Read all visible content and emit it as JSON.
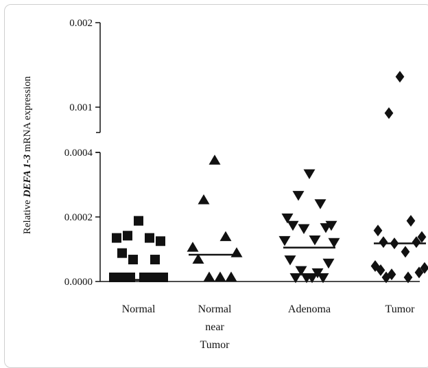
{
  "chart_data": {
    "type": "scatter",
    "ylabel_prefix": "Relative ",
    "ylabel_gene": "DEFA 1-3",
    "ylabel_suffix": " mRNA expression",
    "categories": [
      {
        "lines": [
          "Normal"
        ]
      },
      {
        "lines": [
          "Normal",
          "near",
          "Tumor"
        ]
      },
      {
        "lines": [
          "Adenoma"
        ]
      },
      {
        "lines": [
          "Tumor"
        ]
      }
    ],
    "y_axis": {
      "lower_segment": {
        "range": [
          0,
          0.0004
        ],
        "ticks": [
          "0.0000",
          "0.0002",
          "0.0004"
        ]
      },
      "upper_segment": {
        "range": [
          0.0007,
          0.002
        ],
        "ticks": [
          "0.001",
          "0.002"
        ]
      },
      "break_between": [
        0.0004,
        0.0007
      ]
    },
    "series": [
      {
        "marker": "square",
        "median": 5e-06,
        "values": [
          0.000188,
          0.000142,
          0.000135,
          0.000135,
          0.000125,
          8.8e-05,
          6.8e-05,
          6.8e-05,
          1.2e-05,
          1.2e-05,
          8e-06,
          2e-06,
          2e-06,
          2e-06,
          2e-06,
          2e-06,
          2e-06
        ]
      },
      {
        "marker": "triangle-up",
        "median": 8.3e-05,
        "values": [
          0.000375,
          0.000252,
          0.000138,
          0.000105,
          8.8e-05,
          6.8e-05,
          1e-05,
          1e-05,
          1e-05
        ]
      },
      {
        "marker": "triangle-down",
        "median": 0.000105,
        "values": [
          0.000335,
          0.000268,
          0.000242,
          0.000198,
          0.000175,
          0.000175,
          0.000168,
          0.000165,
          0.00013,
          0.000128,
          0.000122,
          6.8e-05,
          5.8e-05,
          3.5e-05,
          2.8e-05,
          1.2e-05,
          8e-06,
          8e-06,
          8e-06
        ]
      },
      {
        "marker": "diamond",
        "median": 0.000118,
        "values": [
          0.00136,
          0.00093,
          0.000188,
          0.000158,
          0.000138,
          0.000122,
          0.000122,
          0.000118,
          9.2e-05,
          4.8e-05,
          4.2e-05,
          3.5e-05,
          2.8e-05,
          2.2e-05,
          8e-06,
          8e-06
        ]
      }
    ]
  }
}
